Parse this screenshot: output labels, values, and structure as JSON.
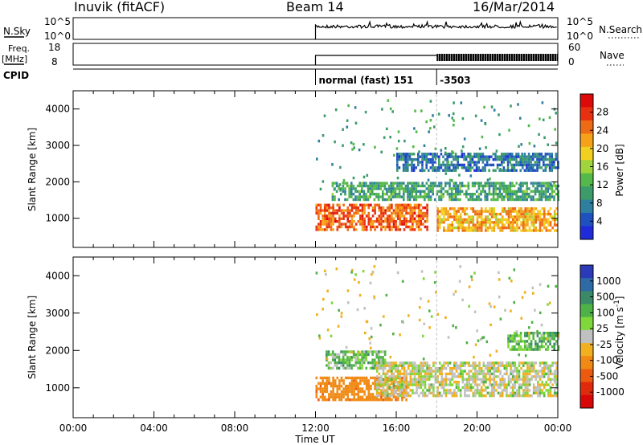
{
  "header": {
    "station": "Inuvik (fitACF)",
    "beam": "Beam 14",
    "date": "16/Mar/2014"
  },
  "nsky": {
    "label": "N.Sky",
    "ticks_left": [
      "10^5",
      "10^0"
    ],
    "ticks_right": [
      "10^5",
      "10^0"
    ],
    "right_label": "N.Search"
  },
  "freq": {
    "label_top": "Freq.",
    "label_unit": "[MHz]",
    "ticks_left": [
      "18",
      "8"
    ],
    "ticks_right": [
      "60",
      "0"
    ],
    "right_label": "Nave"
  },
  "cpid": {
    "label": "CPID",
    "segments": [
      {
        "start_hour": 12.0,
        "label": "normal (fast) 151"
      },
      {
        "start_hour": 18.0,
        "label": "-3503"
      }
    ]
  },
  "colors": {
    "power_scale": [
      "#1f2bd8",
      "#1e50c0",
      "#2f7fa0",
      "#3b9c6a",
      "#54b84a",
      "#9fd43a",
      "#f2d020",
      "#f5a21a",
      "#ef6a15",
      "#e83010",
      "#dd0a0a"
    ],
    "velocity_scale": [
      "#2a3ab8",
      "#2e6aa6",
      "#3a8a68",
      "#4fb246",
      "#7fd83a",
      "#c0c0c0",
      "#f0b020",
      "#f08a14",
      "#ec5a10",
      "#e02a0c",
      "#d80808"
    ]
  },
  "chart_data": [
    {
      "type": "heatmap",
      "panel": "power",
      "ylabel": "Slant Range [km]",
      "xlim": [
        0,
        24
      ],
      "ylim": [
        200,
        4500
      ],
      "yticks": [
        1000,
        2000,
        3000,
        4000
      ],
      "colorbar": {
        "label": "Power [dB]",
        "ticks": [
          "4",
          "8",
          "12",
          "16",
          "20",
          "24",
          "28"
        ],
        "range": [
          0,
          32
        ]
      },
      "data_start_hour": 12.0,
      "bands": [
        {
          "range_km": [
            700,
            1400
          ],
          "value_db": 26,
          "from_hour": 12.0,
          "to_hour": 17.5
        },
        {
          "range_km": [
            1500,
            2000
          ],
          "value_db": 10,
          "from_hour": 12.8,
          "to_hour": 24.0
        },
        {
          "range_km": [
            2300,
            2800
          ],
          "value_db": 6,
          "from_hour": 16.0,
          "to_hour": 24.0
        },
        {
          "range_km": [
            700,
            1300
          ],
          "value_db": 22,
          "from_hour": 18.0,
          "to_hour": 24.0
        }
      ]
    },
    {
      "type": "heatmap",
      "panel": "velocity",
      "ylabel": "Slant Range [km]",
      "xlabel": "Time UT",
      "xlim": [
        0,
        24
      ],
      "ylim": [
        200,
        4500
      ],
      "yticks": [
        1000,
        2000,
        3000,
        4000
      ],
      "xticks": [
        "00:00",
        "04:00",
        "08:00",
        "12:00",
        "16:00",
        "20:00",
        "00:00"
      ],
      "colorbar": {
        "label": "Velocity [m s^-1]",
        "ticks": [
          "1000",
          "500",
          "100",
          "25",
          "-25",
          "-100",
          "-500",
          "-1000"
        ]
      },
      "data_start_hour": 12.0,
      "bands": [
        {
          "range_km": [
            700,
            1300
          ],
          "value_ms": -200,
          "from_hour": 12.0,
          "to_hour": 16.5
        },
        {
          "range_km": [
            1500,
            2000
          ],
          "value_ms": 60,
          "from_hour": 12.5,
          "to_hour": 15.5
        },
        {
          "range_km": [
            800,
            1700
          ],
          "value_ms": 0,
          "from_hour": 15.0,
          "to_hour": 24.0
        },
        {
          "range_km": [
            2000,
            2500
          ],
          "value_ms": 80,
          "from_hour": 21.5,
          "to_hour": 24.0
        }
      ]
    }
  ]
}
